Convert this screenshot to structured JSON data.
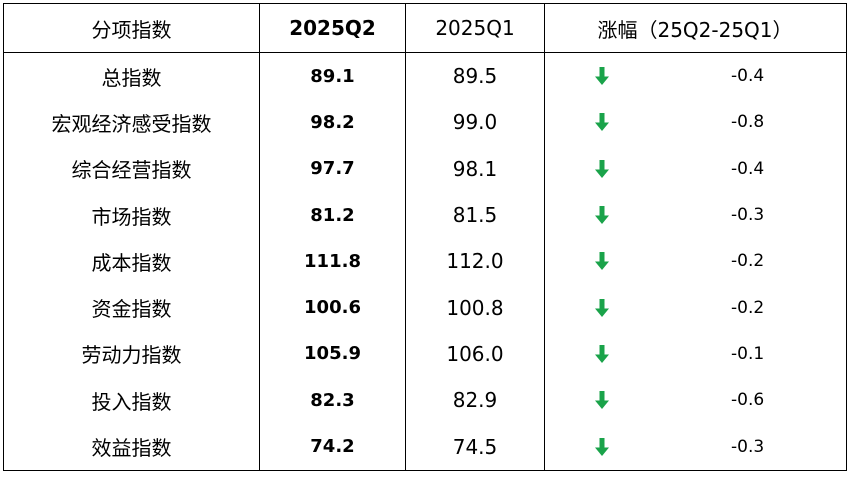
{
  "header": {
    "col1": "分项指数",
    "col2": "2025Q2",
    "col3": "2025Q1",
    "col4": "涨幅（25Q2-25Q1）"
  },
  "rows": [
    {
      "name": "总指数",
      "q2": "89.1",
      "q1": "89.5",
      "delta": "-0.4",
      "trend_icon": "down-arrow-icon"
    },
    {
      "name": "宏观经济感受指数",
      "q2": "98.2",
      "q1": "99.0",
      "delta": "-0.8",
      "trend_icon": "down-arrow-icon"
    },
    {
      "name": "综合经营指数",
      "q2": "97.7",
      "q1": "98.1",
      "delta": "-0.4",
      "trend_icon": "down-arrow-icon"
    },
    {
      "name": "市场指数",
      "q2": "81.2",
      "q1": "81.5",
      "delta": "-0.3",
      "trend_icon": "down-arrow-icon"
    },
    {
      "name": "成本指数",
      "q2": "111.8",
      "q1": "112.0",
      "delta": "-0.2",
      "trend_icon": "down-arrow-icon"
    },
    {
      "name": "资金指数",
      "q2": "100.6",
      "q1": "100.8",
      "delta": "-0.2",
      "trend_icon": "down-arrow-icon"
    },
    {
      "name": "劳动力指数",
      "q2": "105.9",
      "q1": "106.0",
      "delta": "-0.1",
      "trend_icon": "down-arrow-icon"
    },
    {
      "name": "投入指数",
      "q2": "82.3",
      "q1": "82.9",
      "delta": "-0.6",
      "trend_icon": "down-arrow-icon"
    },
    {
      "name": "效益指数",
      "q2": "74.2",
      "q1": "74.5",
      "delta": "-0.3",
      "trend_icon": "down-arrow-icon"
    }
  ],
  "colors": {
    "arrow": "#1aa34a",
    "border": "#000000"
  }
}
